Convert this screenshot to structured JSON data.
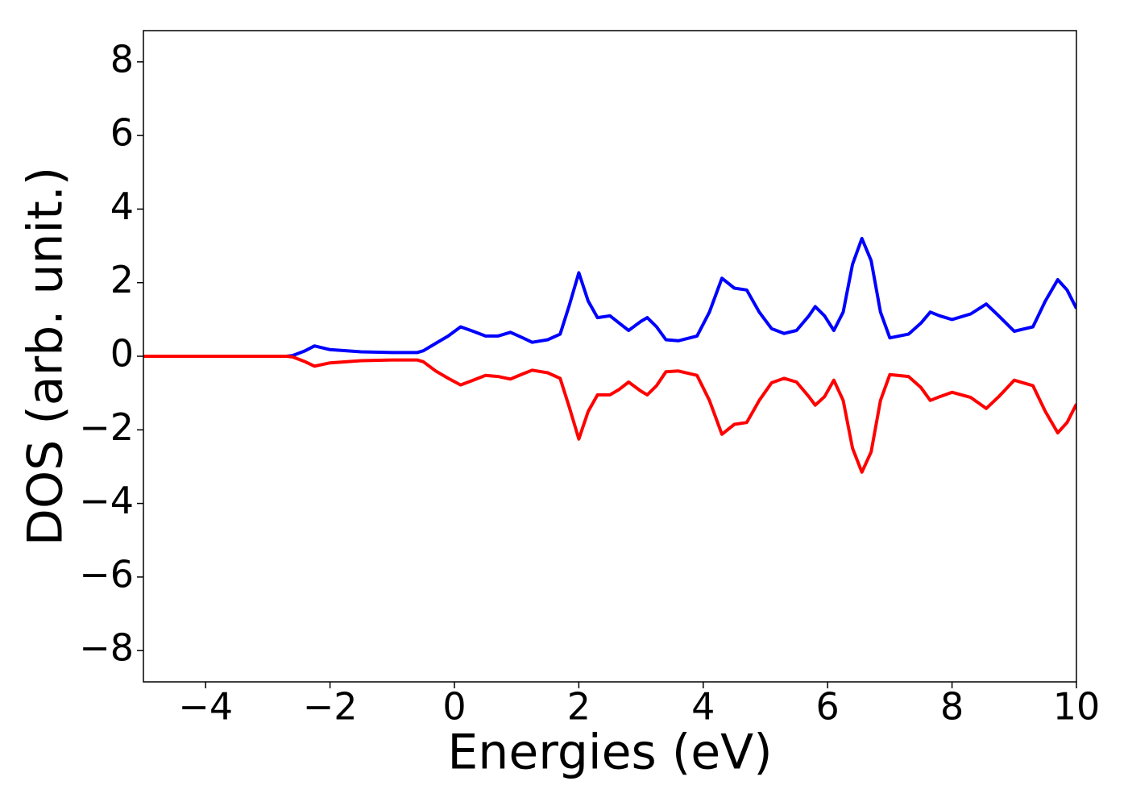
{
  "chart_data": {
    "type": "line",
    "xlabel": "Energies (eV)",
    "ylabel": "DOS (arb. unit.)",
    "x": [
      -5,
      -4,
      -3,
      -2.7,
      -2.6,
      -2.4,
      -2.25,
      -2.0,
      -1.5,
      -1.0,
      -0.6,
      -0.5,
      -0.3,
      -0.1,
      0.1,
      0.3,
      0.5,
      0.7,
      0.9,
      1.1,
      1.25,
      1.5,
      1.7,
      1.85,
      2.0,
      2.15,
      2.3,
      2.5,
      2.65,
      2.8,
      3.0,
      3.1,
      3.25,
      3.4,
      3.6,
      3.9,
      4.1,
      4.3,
      4.5,
      4.7,
      4.9,
      5.1,
      5.3,
      5.5,
      5.7,
      5.8,
      5.95,
      6.1,
      6.25,
      6.4,
      6.55,
      6.7,
      6.85,
      7.0,
      7.3,
      7.5,
      7.65,
      7.8,
      8.0,
      8.3,
      8.55,
      8.75,
      9.0,
      9.3,
      9.5,
      9.7,
      9.85,
      10.0
    ],
    "series": [
      {
        "color": "#0000ff",
        "values": [
          0,
          0,
          0,
          0,
          0.02,
          0.15,
          0.28,
          0.18,
          0.12,
          0.1,
          0.1,
          0.15,
          0.35,
          0.55,
          0.8,
          0.68,
          0.55,
          0.55,
          0.65,
          0.5,
          0.38,
          0.45,
          0.6,
          1.4,
          2.27,
          1.5,
          1.05,
          1.1,
          0.9,
          0.7,
          0.95,
          1.05,
          0.8,
          0.45,
          0.42,
          0.55,
          1.2,
          2.12,
          1.85,
          1.8,
          1.2,
          0.75,
          0.62,
          0.7,
          1.1,
          1.35,
          1.1,
          0.7,
          1.2,
          2.5,
          3.2,
          2.6,
          1.2,
          0.5,
          0.6,
          0.9,
          1.2,
          1.1,
          1.0,
          1.15,
          1.42,
          1.1,
          0.68,
          0.8,
          1.5,
          2.08,
          1.8,
          1.3
        ]
      },
      {
        "color": "#ff0000",
        "values": [
          0,
          0,
          0,
          0,
          -0.02,
          -0.15,
          -0.27,
          -0.18,
          -0.12,
          -0.1,
          -0.1,
          -0.15,
          -0.4,
          -0.6,
          -0.78,
          -0.65,
          -0.52,
          -0.55,
          -0.62,
          -0.48,
          -0.38,
          -0.45,
          -0.6,
          -1.4,
          -2.25,
          -1.5,
          -1.05,
          -1.05,
          -0.9,
          -0.7,
          -0.95,
          -1.05,
          -0.8,
          -0.42,
          -0.4,
          -0.52,
          -1.2,
          -2.12,
          -1.85,
          -1.8,
          -1.2,
          -0.72,
          -0.6,
          -0.7,
          -1.1,
          -1.33,
          -1.1,
          -0.65,
          -1.2,
          -2.5,
          -3.15,
          -2.6,
          -1.2,
          -0.5,
          -0.55,
          -0.85,
          -1.2,
          -1.1,
          -0.98,
          -1.12,
          -1.42,
          -1.1,
          -0.65,
          -0.8,
          -1.5,
          -2.08,
          -1.8,
          -1.3
        ]
      }
    ],
    "xlim": [
      -5,
      10
    ],
    "ylim": [
      -8.85,
      8.85
    ],
    "xticks": [
      {
        "value": -4,
        "label": "−4"
      },
      {
        "value": -2,
        "label": "−2"
      },
      0,
      2,
      4,
      6,
      8,
      10
    ],
    "yticks": [
      {
        "value": -8,
        "label": "−8"
      },
      {
        "value": -6,
        "label": "−6"
      },
      {
        "value": -4,
        "label": "−4"
      },
      {
        "value": -2,
        "label": "−2"
      },
      0,
      2,
      4,
      6,
      8
    ],
    "grid": false
  }
}
